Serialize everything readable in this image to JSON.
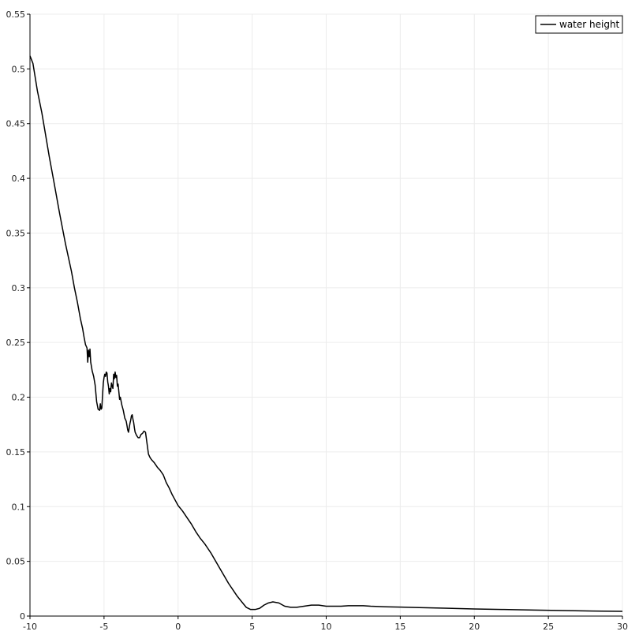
{
  "chart_data": {
    "type": "line",
    "title": "",
    "xlabel": "",
    "ylabel": "",
    "xlim": [
      -10,
      30
    ],
    "ylim": [
      0,
      0.55
    ],
    "x_ticks": [
      -10,
      -5,
      0,
      5,
      10,
      15,
      20,
      25,
      30
    ],
    "y_ticks": [
      0,
      0.05,
      0.1,
      0.15,
      0.2,
      0.25,
      0.3,
      0.35,
      0.4,
      0.45,
      0.5,
      0.55
    ],
    "x_tick_labels": [
      "-10",
      "-5",
      "0",
      "5",
      "10",
      "15",
      "20",
      "25",
      "30"
    ],
    "y_tick_labels": [
      "0",
      "0.05",
      "0.1",
      "0.15",
      "0.2",
      "0.25",
      "0.3",
      "0.35",
      "0.4",
      "0.45",
      "0.5",
      "0.55"
    ],
    "grid": true,
    "legend": {
      "position": "top-right"
    },
    "series": [
      {
        "name": "water height",
        "color": "#000000",
        "x": [
          -10,
          -9.8,
          -9.5,
          -9.2,
          -9,
          -8.7,
          -8.4,
          -8,
          -7.6,
          -7.2,
          -7,
          -6.8,
          -6.6,
          -6.45,
          -6.35,
          -6.25,
          -6.15,
          -6.1,
          -6.05,
          -6.0,
          -5.95,
          -5.9,
          -5.8,
          -5.7,
          -5.6,
          -5.5,
          -5.4,
          -5.3,
          -5.25,
          -5.2,
          -5.15,
          -5.1,
          -5.05,
          -5.0,
          -4.95,
          -4.9,
          -4.85,
          -4.8,
          -4.75,
          -4.7,
          -4.65,
          -4.6,
          -4.55,
          -4.5,
          -4.45,
          -4.4,
          -4.35,
          -4.3,
          -4.25,
          -4.2,
          -4.15,
          -4.1,
          -4.05,
          -4.0,
          -3.95,
          -3.9,
          -3.8,
          -3.7,
          -3.6,
          -3.5,
          -3.45,
          -3.4,
          -3.35,
          -3.3,
          -3.25,
          -3.2,
          -3.15,
          -3.1,
          -3.05,
          -3.0,
          -2.95,
          -2.9,
          -2.8,
          -2.7,
          -2.6,
          -2.5,
          -2.4,
          -2.3,
          -2.2,
          -2.15,
          -2.1,
          -2.0,
          -1.9,
          -1.8,
          -1.6,
          -1.4,
          -1.2,
          -1.0,
          -0.8,
          -0.6,
          -0.4,
          -0.2,
          0.0,
          0.3,
          0.6,
          0.9,
          1.2,
          1.5,
          1.8,
          2.0,
          2.2,
          2.5,
          2.8,
          3.1,
          3.4,
          3.7,
          4.0,
          4.3,
          4.6,
          4.9,
          5.2,
          5.5,
          5.8,
          6.1,
          6.4,
          6.8,
          7.2,
          7.6,
          8.0,
          8.5,
          9.0,
          9.5,
          10.0,
          10.5,
          11.0,
          11.5,
          12.0,
          12.5,
          13.0,
          14.0,
          15.0,
          16.0,
          18.0,
          20.0,
          22.0,
          24.0,
          26.0,
          28.0,
          30.0
        ],
        "values": [
          0.512,
          0.505,
          0.48,
          0.46,
          0.444,
          0.42,
          0.398,
          0.368,
          0.34,
          0.315,
          0.3,
          0.287,
          0.272,
          0.263,
          0.255,
          0.248,
          0.245,
          0.232,
          0.243,
          0.237,
          0.244,
          0.232,
          0.224,
          0.219,
          0.211,
          0.196,
          0.189,
          0.188,
          0.194,
          0.189,
          0.19,
          0.202,
          0.213,
          0.218,
          0.221,
          0.219,
          0.223,
          0.222,
          0.214,
          0.21,
          0.203,
          0.208,
          0.205,
          0.213,
          0.21,
          0.208,
          0.221,
          0.217,
          0.223,
          0.218,
          0.22,
          0.21,
          0.212,
          0.205,
          0.198,
          0.2,
          0.193,
          0.188,
          0.181,
          0.178,
          0.174,
          0.17,
          0.168,
          0.172,
          0.176,
          0.179,
          0.183,
          0.184,
          0.18,
          0.177,
          0.172,
          0.168,
          0.165,
          0.163,
          0.163,
          0.166,
          0.167,
          0.169,
          0.168,
          0.163,
          0.158,
          0.148,
          0.145,
          0.143,
          0.14,
          0.136,
          0.133,
          0.129,
          0.122,
          0.117,
          0.111,
          0.106,
          0.101,
          0.096,
          0.09,
          0.084,
          0.077,
          0.071,
          0.066,
          0.062,
          0.058,
          0.051,
          0.044,
          0.037,
          0.03,
          0.024,
          0.018,
          0.013,
          0.008,
          0.006,
          0.006,
          0.007,
          0.01,
          0.012,
          0.013,
          0.012,
          0.009,
          0.008,
          0.008,
          0.009,
          0.01,
          0.01,
          0.009,
          0.009,
          0.009,
          0.0095,
          0.0095,
          0.0095,
          0.009,
          0.0085,
          0.0082,
          0.0078,
          0.0072,
          0.0065,
          0.006,
          0.0055,
          0.005,
          0.0046,
          0.0043
        ]
      }
    ]
  }
}
